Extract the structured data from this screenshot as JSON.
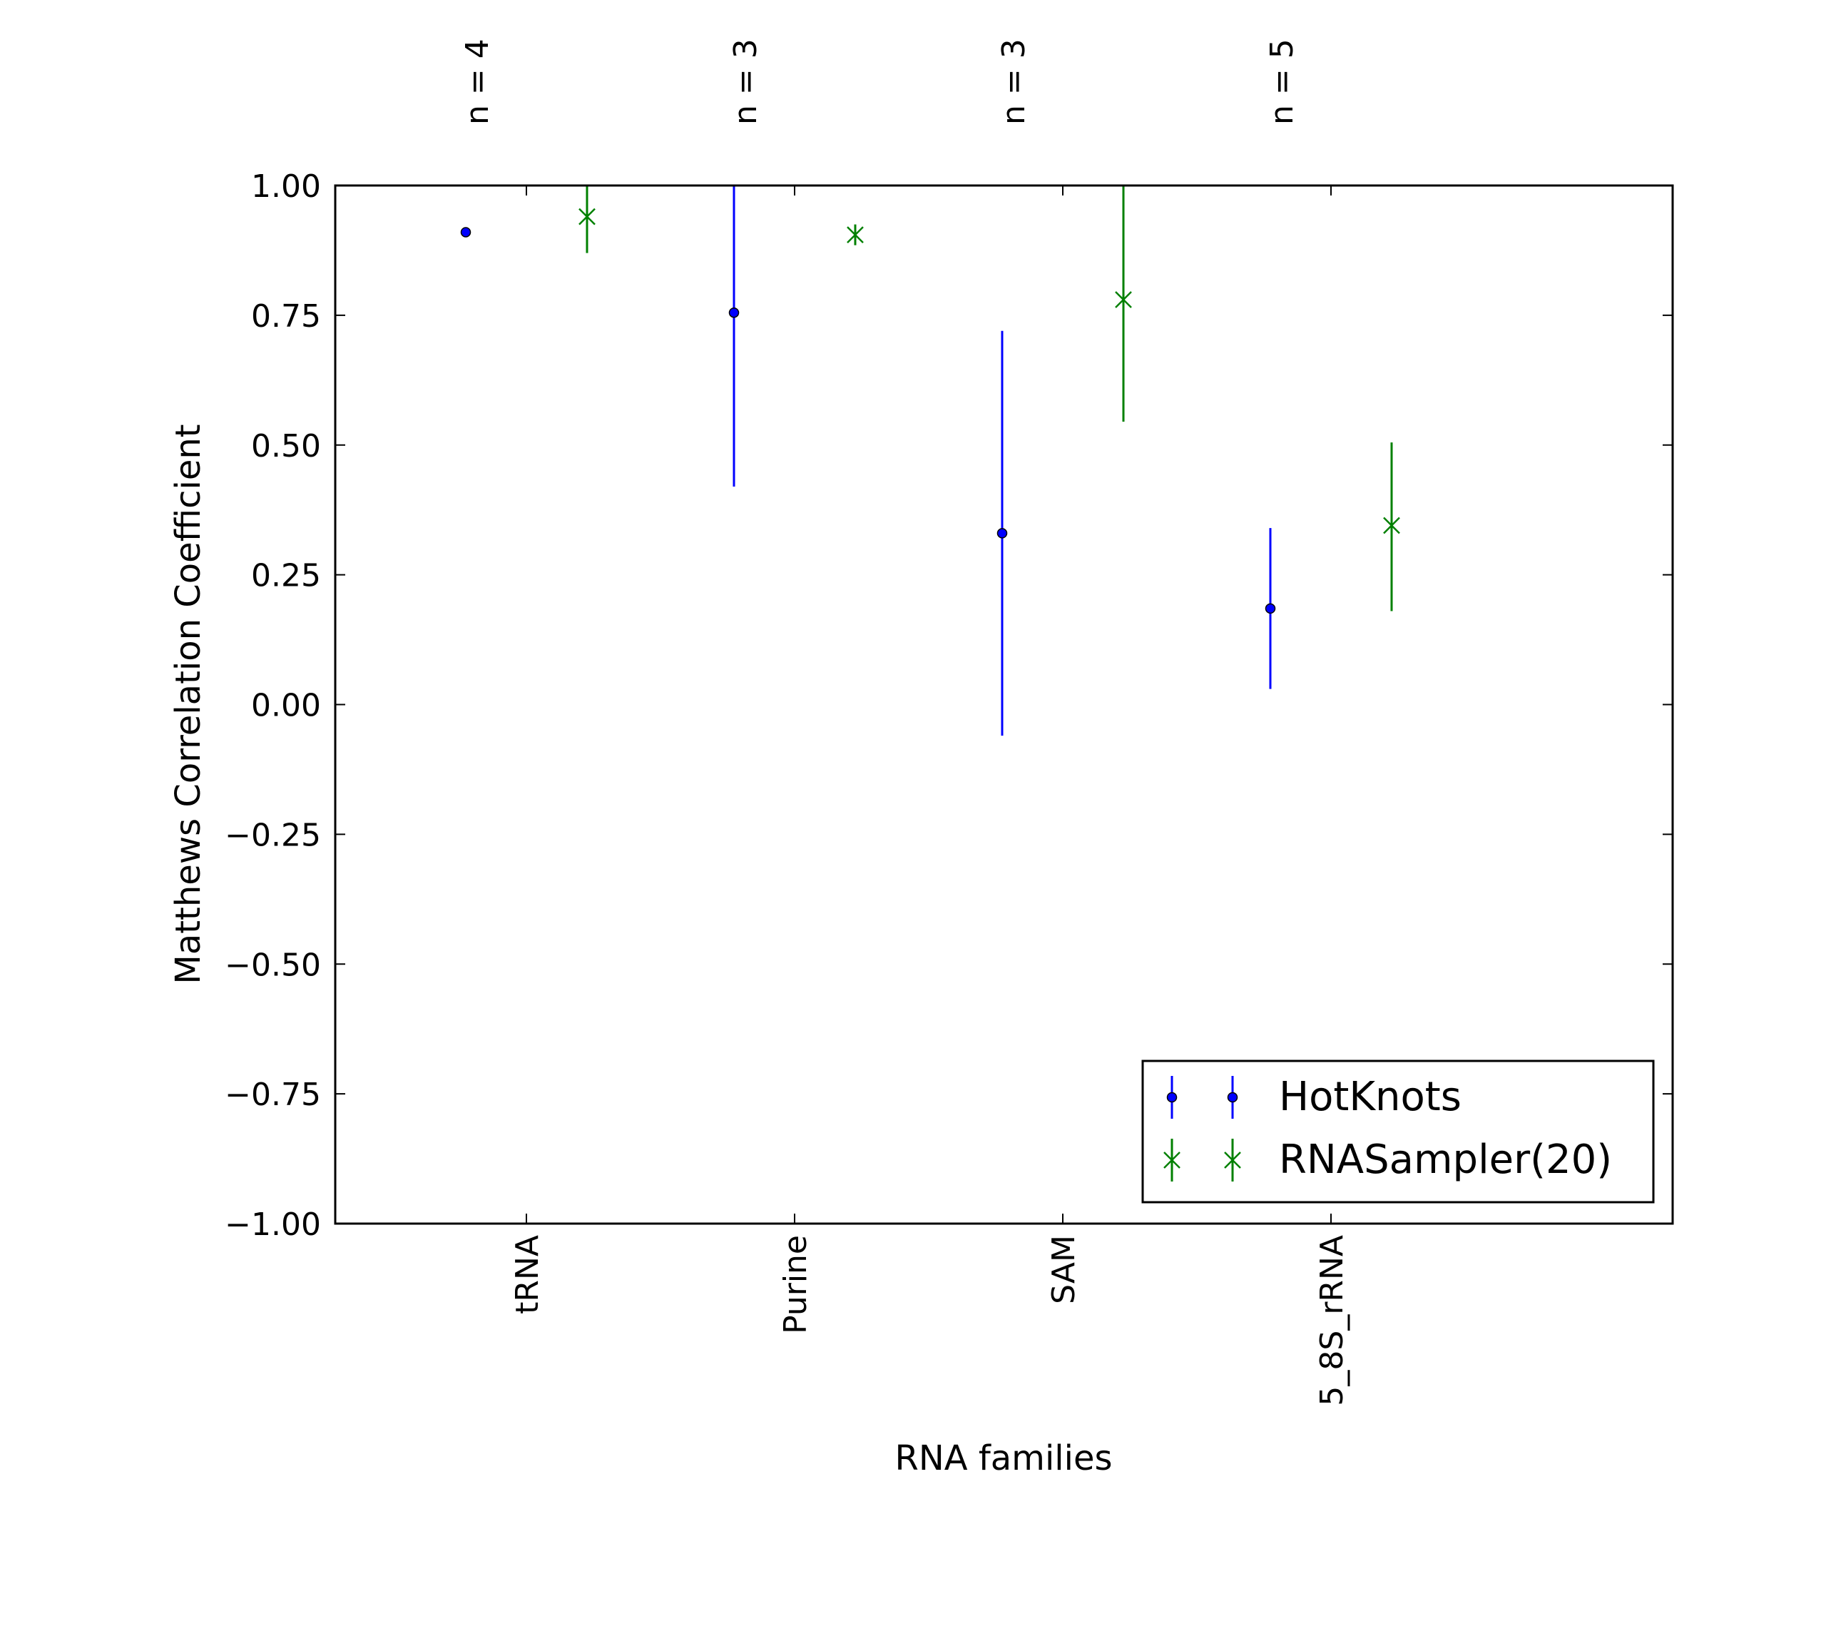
{
  "chart_data": {
    "type": "errorbar",
    "title": "",
    "xlabel": "RNA families",
    "ylabel": "Matthews Correlation Coefficient",
    "ylim": [
      -1.0,
      1.0
    ],
    "yticks": [
      "1.00",
      "0.75",
      "0.50",
      "0.25",
      "0.00",
      "−0.25",
      "−0.50",
      "−0.75",
      "−1.00"
    ],
    "ytick_values": [
      1.0,
      0.75,
      0.5,
      0.25,
      0.0,
      -0.25,
      -0.5,
      -0.75,
      -1.0
    ],
    "categories": [
      "tRNA",
      "Purine",
      "SAM",
      "5_8S_rRNA"
    ],
    "top_annotations": [
      "n = 4",
      "n = 3",
      "n = 3",
      "n = 5"
    ],
    "grid": false,
    "legend_position": "lower-right",
    "series": [
      {
        "name": "HotKnots",
        "color": "#0000ff",
        "marker": "dot",
        "values": [
          0.91,
          0.755,
          0.33,
          0.185
        ],
        "err_low": [
          0.91,
          0.42,
          -0.06,
          0.03
        ],
        "err_high": [
          0.91,
          1.0,
          0.72,
          0.34
        ]
      },
      {
        "name": "RNASampler(20)",
        "color": "#008000",
        "marker": "x",
        "values": [
          0.94,
          0.905,
          0.78,
          0.345
        ],
        "err_low": [
          0.87,
          0.885,
          0.545,
          0.18
        ],
        "err_high": [
          1.0,
          0.925,
          1.0,
          0.505
        ]
      }
    ]
  }
}
